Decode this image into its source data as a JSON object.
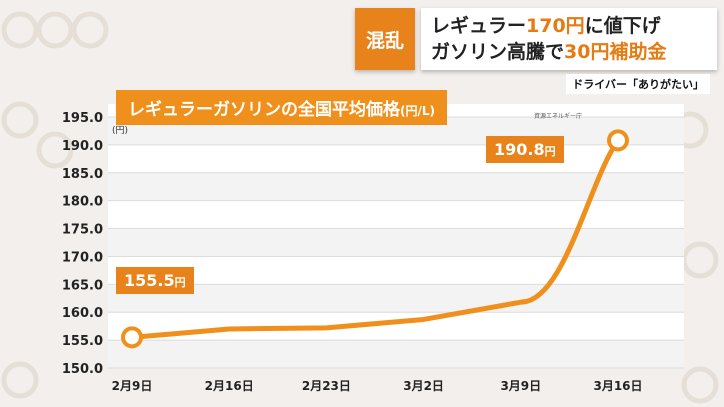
{
  "headline": {
    "tag": "混乱",
    "line1_a": "レギュラー",
    "line1_b": "170円",
    "line1_c": "に値下げ",
    "line2_a": "ガソリン高騰で",
    "line2_b": "30円補助金"
  },
  "subtitle": "ドライバー「ありがたい」",
  "chart_title_main": "レギュラーガソリンの全国平均価格",
  "chart_title_unit": "(円/L)",
  "source": "資源エネルギー庁",
  "callouts": {
    "first_value": "155.5",
    "first_unit": "円",
    "last_value": "190.8",
    "last_unit": "円"
  },
  "colors": {
    "accent": "#e8821a",
    "line": "#f0901c",
    "background": "#f2efec"
  },
  "chart_data": {
    "type": "line",
    "title": "レギュラーガソリンの全国平均価格",
    "unit_label": "(円)",
    "x": [
      "2月9日",
      "2月16日",
      "2月23日",
      "3月2日",
      "3月9日",
      "3月16日"
    ],
    "series": [
      {
        "values": [
          155.5,
          157.0,
          157.2,
          158.7,
          161.8,
          190.8
        ]
      }
    ],
    "ylim": [
      150.0,
      195.0
    ],
    "yticks": [
      "150.0",
      "155.0",
      "160.0",
      "165.0",
      "170.0",
      "175.0",
      "180.0",
      "185.0",
      "190.0",
      "195.0"
    ],
    "grid": true
  }
}
